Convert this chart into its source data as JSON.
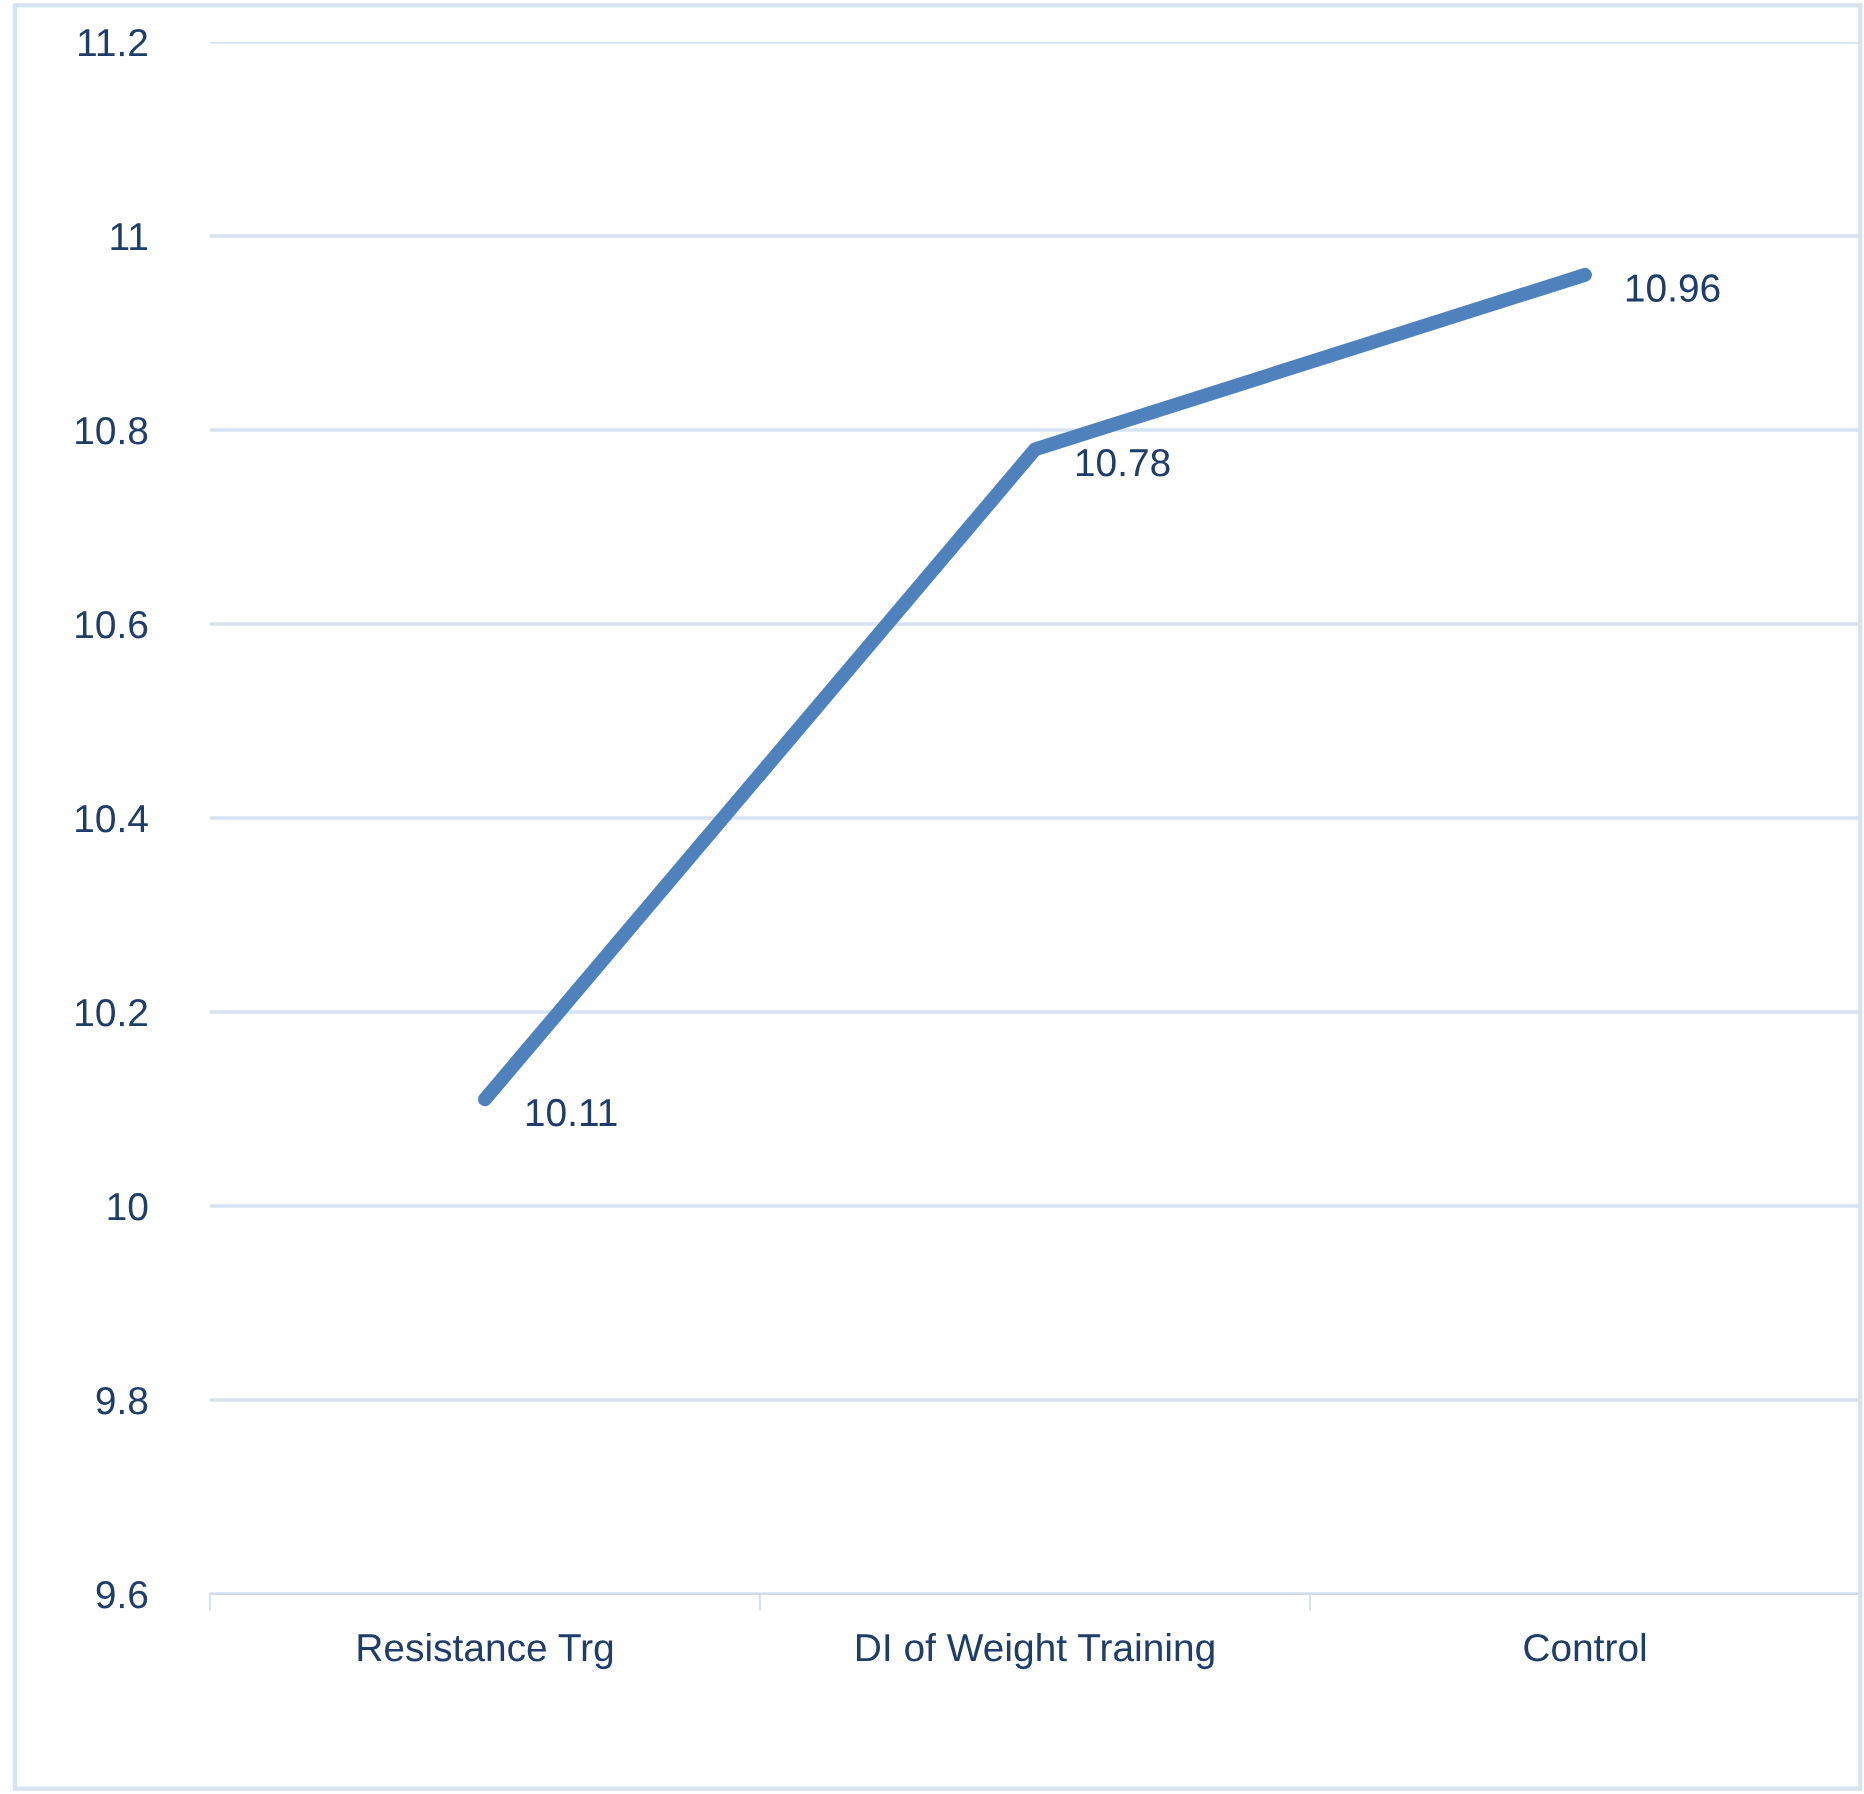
{
  "chart_data": {
    "type": "line",
    "categories": [
      "Resistance Trg",
      "DI of Weight Training",
      "Control"
    ],
    "series": [
      {
        "color": "#4f81bd",
        "values": [
          10.11,
          10.78,
          10.96
        ]
      }
    ],
    "ylim": [
      9.6,
      11.2
    ],
    "yticks": [
      9.6,
      9.8,
      10,
      10.2,
      10.4,
      10.6,
      10.8,
      11,
      11.2
    ],
    "grid": "y",
    "data_labels": true,
    "marker": "none",
    "line_style": "solid"
  }
}
